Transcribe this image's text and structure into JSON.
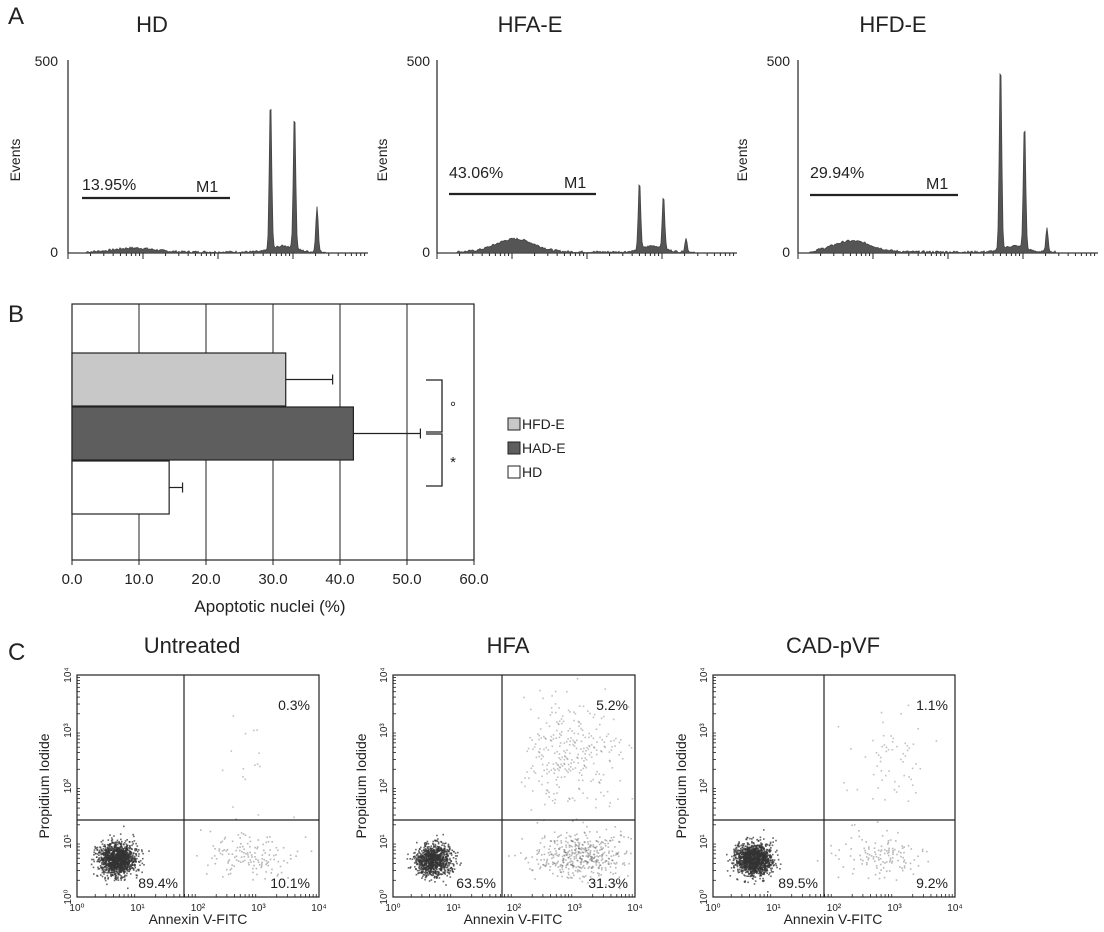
{
  "panels": {
    "a_letter": "A",
    "b_letter": "B",
    "c_letter": "C"
  },
  "panel_a": {
    "y_axis_label": "Events",
    "y_ticks": [
      "0",
      "500"
    ],
    "gate_label": "M1",
    "histograms": [
      {
        "title": "HD",
        "gate_percent": "13.95%"
      },
      {
        "title": "HFA-E",
        "gate_percent": "43.06%"
      },
      {
        "title": "HFD-E",
        "gate_percent": "29.94%"
      }
    ]
  },
  "panel_b": {
    "xlabel": "Apoptotic nuclei (%)",
    "x_ticks": [
      "0.0",
      "10.0",
      "20.0",
      "30.0",
      "40.0",
      "50.0",
      "60.0"
    ],
    "significance": [
      "°",
      "*"
    ],
    "legend": [
      "HFD-E",
      "HAD-E",
      "HD"
    ]
  },
  "panel_c": {
    "xlabel": "Annexin V-FITC",
    "ylabel": "Propidium Iodide",
    "plots": [
      {
        "title": "Untreated",
        "q_ul": "",
        "q_ur": "0.3%",
        "q_ll": "89.4%",
        "q_lr": "10.1%"
      },
      {
        "title": "HFA",
        "q_ul": "",
        "q_ur": "5.2%",
        "q_ll": "63.5%",
        "q_lr": "31.3%"
      },
      {
        "title": "CAD-pVF",
        "q_ul": "",
        "q_ur": "1.1%",
        "q_ll": "89.5%",
        "q_lr": "9.2%"
      }
    ]
  },
  "chart_data": [
    {
      "type": "area",
      "panel": "A",
      "subplots": [
        {
          "title": "HD",
          "ylim": [
            0,
            500
          ],
          "ylabel": "Events",
          "gate": "M1",
          "gate_percent": 13.95,
          "peaks": [
            395,
            360,
            120
          ]
        },
        {
          "title": "HFA-E",
          "ylim": [
            0,
            500
          ],
          "ylabel": "Events",
          "gate": "M1",
          "gate_percent": 43.06,
          "peaks": [
            180,
            140,
            35
          ]
        },
        {
          "title": "HFD-E",
          "ylim": [
            0,
            500
          ],
          "ylabel": "Events",
          "gate": "M1",
          "gate_percent": 29.94,
          "peaks": [
            495,
            330,
            60
          ]
        }
      ]
    },
    {
      "type": "bar",
      "panel": "B",
      "orientation": "horizontal",
      "categories": [
        "HFD-E",
        "HAD-E",
        "HD"
      ],
      "values": [
        31.9,
        42.0,
        14.5
      ],
      "errors": [
        7.0,
        10.0,
        2.0
      ],
      "colors": [
        "#c8c8c8",
        "#5e5e5e",
        "#ffffff"
      ],
      "xlabel": "Apoptotic nuclei (%)",
      "xlim": [
        0,
        60
      ],
      "grid": true,
      "legend_position": "right"
    },
    {
      "type": "scatter",
      "panel": "C",
      "xlabel": "Annexin V-FITC",
      "ylabel": "Propidium Iodide",
      "scale": "log",
      "xlim": [
        1,
        10000
      ],
      "ylim": [
        1,
        10000
      ],
      "subplots": [
        {
          "title": "Untreated",
          "quadrants": {
            "lower_left": 89.4,
            "lower_right": 10.1,
            "upper_right": 0.3
          }
        },
        {
          "title": "HFA",
          "quadrants": {
            "lower_left": 63.5,
            "lower_right": 31.3,
            "upper_right": 5.2
          }
        },
        {
          "title": "CAD-pVF",
          "quadrants": {
            "lower_left": 89.5,
            "lower_right": 9.2,
            "upper_right": 1.1
          }
        }
      ]
    }
  ]
}
